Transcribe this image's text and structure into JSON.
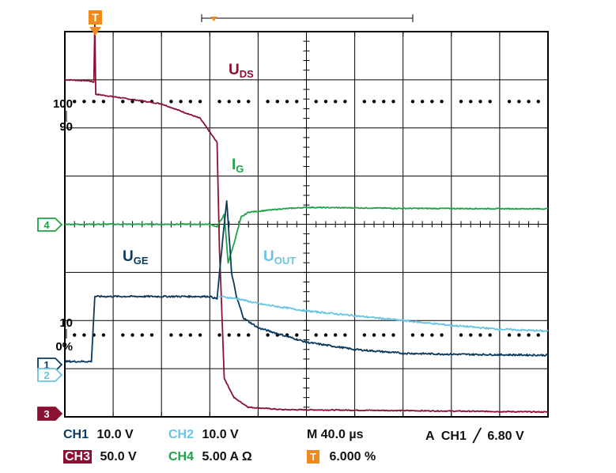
{
  "chart_data": {
    "type": "line",
    "title": "",
    "grid": true,
    "x": {
      "divisions": 10,
      "time_per_div": "40.0 µs"
    },
    "y": {
      "divisions": 8
    },
    "markers": {
      "trigger": "T",
      "level_labels": [
        "100",
        "90",
        "10",
        "0%"
      ],
      "channel_markers": [
        "4",
        "1",
        "2",
        "3"
      ]
    },
    "series": [
      {
        "name": "UDS",
        "channel": "3",
        "color": "#8a1131",
        "annotation": {
          "main": "U",
          "sub": "DS"
        },
        "points": [
          [
            0,
            -1.0
          ],
          [
            0.5,
            -1.02
          ],
          [
            0.6,
            -1.05
          ],
          [
            0.62,
            0.2
          ],
          [
            0.64,
            -1.3
          ],
          [
            1.0,
            -1.35
          ],
          [
            2.0,
            -1.5
          ],
          [
            2.8,
            -1.8
          ],
          [
            3.15,
            -2.3
          ],
          [
            3.2,
            -4.5
          ],
          [
            3.3,
            -7.2
          ],
          [
            3.5,
            -7.6
          ],
          [
            3.8,
            -7.8
          ],
          [
            4.5,
            -7.85
          ],
          [
            7.0,
            -7.87
          ],
          [
            10.0,
            -7.9
          ]
        ]
      },
      {
        "name": "IG",
        "channel": "4",
        "color": "#1fa34a",
        "annotation": {
          "main": "I",
          "sub": "G"
        },
        "points": [
          [
            0,
            -4.0
          ],
          [
            3.0,
            -4.0
          ],
          [
            3.15,
            -4.05
          ],
          [
            3.3,
            -3.8
          ],
          [
            3.38,
            -4.8
          ],
          [
            3.5,
            -4.4
          ],
          [
            3.65,
            -3.85
          ],
          [
            3.8,
            -3.75
          ],
          [
            4.5,
            -3.68
          ],
          [
            5.0,
            -3.65
          ],
          [
            7.0,
            -3.67
          ],
          [
            10.0,
            -3.68
          ]
        ]
      },
      {
        "name": "UGE",
        "channel": "1",
        "color": "#0b3a5f",
        "annotation": {
          "main": "U",
          "sub": "GE"
        },
        "points": [
          [
            0,
            -6.85
          ],
          [
            0.55,
            -6.85
          ],
          [
            0.62,
            -5.5
          ],
          [
            1.0,
            -5.5
          ],
          [
            3.0,
            -5.5
          ],
          [
            3.15,
            -5.55
          ],
          [
            3.25,
            -4.5
          ],
          [
            3.35,
            -3.5
          ],
          [
            3.45,
            -5.0
          ],
          [
            3.55,
            -5.5
          ],
          [
            3.7,
            -5.95
          ],
          [
            4.0,
            -6.15
          ],
          [
            4.5,
            -6.3
          ],
          [
            5.0,
            -6.45
          ],
          [
            6.0,
            -6.6
          ],
          [
            7.0,
            -6.68
          ],
          [
            8.0,
            -6.7
          ],
          [
            10.0,
            -6.72
          ]
        ]
      },
      {
        "name": "UOUT",
        "channel": "2",
        "color": "#6cc5e0",
        "annotation": {
          "main": "U",
          "sub": "OUT"
        },
        "points": [
          [
            3.2,
            -5.5
          ],
          [
            3.6,
            -5.55
          ],
          [
            4.0,
            -5.65
          ],
          [
            5.0,
            -5.8
          ],
          [
            6.0,
            -5.9
          ],
          [
            7.0,
            -6.0
          ],
          [
            8.0,
            -6.1
          ],
          [
            9.0,
            -6.18
          ],
          [
            10.0,
            -6.22
          ]
        ]
      }
    ]
  },
  "status": {
    "ch1_label": "CH1",
    "ch1_value": "10.0 V",
    "ch2_label": "CH2",
    "ch2_value": "10.0 V",
    "ch3_label": "CH3",
    "ch3_value": "50.0 V",
    "ch4_label": "CH4",
    "ch4_value": "5.00 A Ω",
    "timebase": "M 40.0 µs",
    "trigger_label": "A  CH1",
    "trigger_slope_symbol": "╱",
    "trigger_value": "6.80 V",
    "trigger_marker": "T",
    "trigger_position": "6.000 %"
  }
}
